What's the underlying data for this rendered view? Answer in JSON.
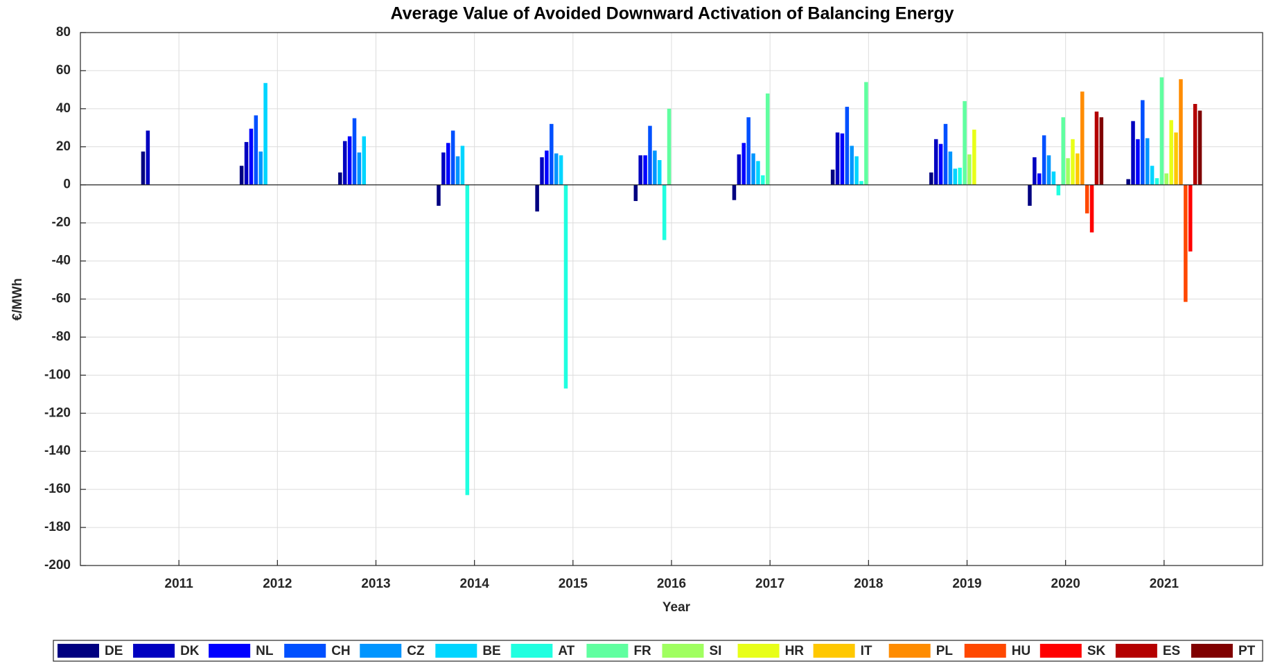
{
  "chart_data": {
    "type": "bar",
    "title": "Average Value of Avoided Downward Activation of Balancing Energy",
    "x_label": "Year",
    "y_label": "€/MWh",
    "x": [
      2011,
      2012,
      2013,
      2014,
      2015,
      2016,
      2017,
      2018,
      2019,
      2020,
      2021
    ],
    "xlim": [
      2010,
      2022
    ],
    "xticks": [
      2011,
      2012,
      2013,
      2014,
      2015,
      2016,
      2017,
      2018,
      2019,
      2020,
      2021
    ],
    "ylim": [
      -200,
      80
    ],
    "yticks": [
      -200,
      -180,
      -160,
      -140,
      -120,
      -100,
      -80,
      -60,
      -40,
      -20,
      0,
      20,
      40,
      60,
      80
    ],
    "grid": true,
    "legend": "bottom",
    "series": [
      {
        "name": "DE",
        "color": "#000080",
        "values": [
          17.5,
          10,
          6.5,
          -11,
          -14,
          -8.5,
          -8,
          8,
          6.5,
          -11,
          3
        ]
      },
      {
        "name": "DK",
        "color": "#0000c0",
        "values": [
          28.5,
          22.5,
          23,
          17,
          14.5,
          15.5,
          16,
          27.5,
          24,
          14.5,
          33.5
        ]
      },
      {
        "name": "NL",
        "color": "#0000ff",
        "values": [
          null,
          29.5,
          25.5,
          22,
          18,
          15.5,
          22,
          27,
          21.5,
          6,
          24
        ]
      },
      {
        "name": "CH",
        "color": "#0050ff",
        "values": [
          null,
          36.5,
          35,
          28.5,
          32,
          31,
          35.5,
          41,
          32,
          26,
          44.5
        ]
      },
      {
        "name": "CZ",
        "color": "#0095ff",
        "values": [
          null,
          17.5,
          17,
          15,
          16.5,
          18,
          16.5,
          20.5,
          17.5,
          15.5,
          24.5
        ]
      },
      {
        "name": "BE",
        "color": "#00d5ff",
        "values": [
          null,
          53.5,
          25.5,
          20.5,
          15.5,
          13,
          12.5,
          15,
          8.5,
          7,
          10
        ]
      },
      {
        "name": "AT",
        "color": "#20ffe0",
        "values": [
          null,
          null,
          null,
          -163,
          -107,
          -29,
          5,
          2,
          9,
          -5.5,
          3.5
        ]
      },
      {
        "name": "FR",
        "color": "#60ffa0",
        "values": [
          null,
          null,
          null,
          null,
          null,
          40,
          48,
          54,
          44,
          35.5,
          56.5
        ]
      },
      {
        "name": "SI",
        "color": "#a0ff60",
        "values": [
          null,
          null,
          null,
          null,
          null,
          null,
          null,
          null,
          16,
          14,
          6
        ]
      },
      {
        "name": "HR",
        "color": "#e8ff18",
        "values": [
          null,
          null,
          null,
          null,
          null,
          null,
          null,
          null,
          29,
          24,
          34
        ]
      },
      {
        "name": "IT",
        "color": "#ffc800",
        "values": [
          null,
          null,
          null,
          null,
          null,
          null,
          null,
          null,
          null,
          16.5,
          27.5
        ]
      },
      {
        "name": "PL",
        "color": "#ff8c00",
        "values": [
          null,
          null,
          null,
          null,
          null,
          null,
          null,
          null,
          null,
          49,
          55.5
        ]
      },
      {
        "name": "HU",
        "color": "#ff4800",
        "values": [
          null,
          null,
          null,
          null,
          null,
          null,
          null,
          null,
          null,
          -15,
          -61.5
        ]
      },
      {
        "name": "SK",
        "color": "#ff0000",
        "values": [
          null,
          null,
          null,
          null,
          null,
          null,
          null,
          null,
          null,
          -25,
          -35
        ]
      },
      {
        "name": "ES",
        "color": "#b40000",
        "values": [
          null,
          null,
          null,
          null,
          null,
          null,
          null,
          null,
          null,
          38.5,
          42.5
        ]
      },
      {
        "name": "PT",
        "color": "#800000",
        "values": [
          null,
          null,
          null,
          null,
          null,
          null,
          null,
          null,
          null,
          35.5,
          39
        ]
      }
    ]
  }
}
